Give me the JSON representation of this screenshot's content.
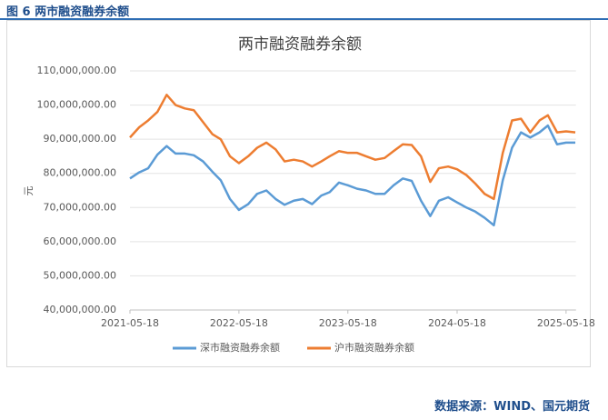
{
  "header": "图 6  两市融资融券余额",
  "source": "数据来源：WIND、国元期货",
  "chart_data": {
    "type": "line",
    "title": "两市融资融券余额",
    "y_label": "元",
    "x": [
      "2021-05-18",
      "2021-06-18",
      "2021-07-18",
      "2021-08-18",
      "2021-09-18",
      "2021-10-18",
      "2021-11-18",
      "2021-12-18",
      "2022-01-18",
      "2022-02-18",
      "2022-03-18",
      "2022-04-18",
      "2022-05-18",
      "2022-06-18",
      "2022-07-18",
      "2022-08-18",
      "2022-09-18",
      "2022-10-18",
      "2022-11-18",
      "2022-12-18",
      "2023-01-18",
      "2023-02-18",
      "2023-03-18",
      "2023-04-18",
      "2023-05-18",
      "2023-06-18",
      "2023-07-18",
      "2023-08-18",
      "2023-09-18",
      "2023-10-18",
      "2023-11-18",
      "2023-12-18",
      "2024-01-18",
      "2024-02-18",
      "2024-03-18",
      "2024-04-18",
      "2024-05-18",
      "2024-06-18",
      "2024-07-18",
      "2024-08-18",
      "2024-09-18",
      "2024-10-18",
      "2024-11-18",
      "2024-12-18",
      "2025-01-18",
      "2025-02-18",
      "2025-03-18",
      "2025-04-18",
      "2025-05-18",
      "2025-06-18"
    ],
    "series": [
      {
        "name": "深市融资融券余额",
        "color": "#5b9bd5",
        "values": [
          78500000,
          80300000,
          81500000,
          85500000,
          88000000,
          85800000,
          85800000,
          85300000,
          83500000,
          80500000,
          78000000,
          72500000,
          69300000,
          71000000,
          74000000,
          75000000,
          72500000,
          70800000,
          72000000,
          72500000,
          71000000,
          73500000,
          74500000,
          77300000,
          76500000,
          75500000,
          75000000,
          74000000,
          74000000,
          76500000,
          78500000,
          77800000,
          72000000,
          67500000,
          72000000,
          73000000,
          71500000,
          70000000,
          68800000,
          67000000,
          64800000,
          78000000,
          87500000,
          92000000,
          90500000,
          92000000,
          94000000,
          88500000,
          89000000,
          89000000
        ]
      },
      {
        "name": "沪市融资融券余额",
        "color": "#ed7d31",
        "values": [
          90500000,
          93500000,
          95500000,
          98000000,
          103000000,
          100000000,
          99000000,
          98500000,
          95000000,
          91500000,
          90000000,
          85000000,
          83000000,
          85000000,
          87500000,
          89000000,
          87000000,
          83500000,
          84000000,
          83500000,
          82000000,
          83500000,
          85000000,
          86500000,
          86000000,
          86000000,
          85000000,
          84000000,
          84500000,
          86500000,
          88500000,
          88300000,
          85000000,
          77500000,
          81500000,
          82000000,
          81200000,
          79500000,
          77000000,
          74000000,
          72500000,
          86000000,
          95500000,
          96000000,
          92000000,
          95500000,
          97000000,
          92000000,
          92300000,
          92000000
        ]
      }
    ],
    "xlim": [
      "2021-05-18",
      "2025-06-20"
    ],
    "xticks": [
      "2021-05-18",
      "2022-05-18",
      "2023-05-18",
      "2024-05-18",
      "2025-05-18"
    ],
    "ylim": [
      40000000,
      110000000
    ],
    "yticks": [
      {
        "value": 40000000,
        "label": "40,000,000.00"
      },
      {
        "value": 50000000,
        "label": "50,000,000.00"
      },
      {
        "value": 60000000,
        "label": "60,000,000.00"
      },
      {
        "value": 70000000,
        "label": "70,000,000.00"
      },
      {
        "value": 80000000,
        "label": "80,000,000.00"
      },
      {
        "value": 90000000,
        "label": "90,000,000.00"
      },
      {
        "value": 100000000,
        "label": "100,000,000.00"
      },
      {
        "value": 110000000,
        "label": "110,000,000.00"
      }
    ],
    "grid": true,
    "legend": "bottom"
  }
}
